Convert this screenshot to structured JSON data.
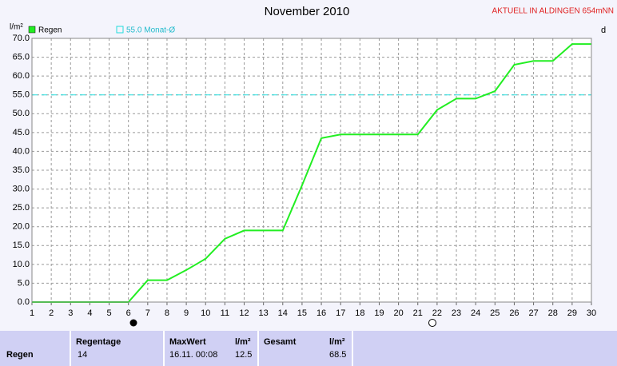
{
  "chart_data": {
    "type": "line",
    "title": "November 2010",
    "subtitle": "AKTUELL IN ALDINGEN 654mNN",
    "y_label": "l/m²",
    "x_label": "d",
    "x": [
      1,
      2,
      3,
      4,
      5,
      6,
      7,
      8,
      9,
      10,
      11,
      12,
      13,
      14,
      15,
      16,
      17,
      18,
      19,
      20,
      21,
      22,
      23,
      24,
      25,
      26,
      27,
      28,
      29,
      30
    ],
    "series": [
      {
        "name": "Regen",
        "color": "#22ee22",
        "values": [
          0,
          0,
          0,
          0,
          0,
          0,
          5.8,
          5.8,
          8.5,
          11.5,
          16.8,
          19,
          19,
          19,
          31,
          43.5,
          44.5,
          44.5,
          44.5,
          44.5,
          44.5,
          51,
          54,
          54,
          56,
          63,
          64,
          64,
          68.5,
          68.5
        ]
      }
    ],
    "reference": {
      "value": 55,
      "label": "55.0 Monat-Ø",
      "color": "#22dddd"
    },
    "xlim": [
      1,
      30
    ],
    "xticks": [
      1,
      2,
      3,
      4,
      5,
      6,
      7,
      8,
      9,
      10,
      11,
      12,
      13,
      14,
      15,
      16,
      17,
      18,
      19,
      20,
      21,
      22,
      23,
      24,
      25,
      26,
      27,
      28,
      29,
      30
    ],
    "ylim": [
      0,
      70
    ],
    "yticks": [
      {
        "value": 0,
        "label": "0.0"
      },
      {
        "value": 5,
        "label": "5.0"
      },
      {
        "value": 10,
        "label": "10.0"
      },
      {
        "value": 15,
        "label": "15.0"
      },
      {
        "value": 20,
        "label": "20.0"
      },
      {
        "value": 25,
        "label": "25.0"
      },
      {
        "value": 30,
        "label": "30.0"
      },
      {
        "value": 35,
        "label": "35.0"
      },
      {
        "value": 40,
        "label": "40.0"
      },
      {
        "value": 45,
        "label": "45.0"
      },
      {
        "value": 50,
        "label": "50.0"
      },
      {
        "value": 55,
        "label": "55.0"
      },
      {
        "value": 60,
        "label": "60.0"
      },
      {
        "value": 65,
        "label": "65.0"
      },
      {
        "value": 70,
        "label": "70.0"
      }
    ],
    "grid": true
  },
  "table": {
    "row_label": "Regen",
    "regentage": {
      "header": "Regentage",
      "value": "14"
    },
    "maxwert": {
      "header": "MaxWert",
      "unit": "l/m²",
      "time": "16.11.  00:08",
      "value": "12.5"
    },
    "gesamt": {
      "header": "Gesamt",
      "unit": "l/m²",
      "value": "68.5"
    }
  }
}
